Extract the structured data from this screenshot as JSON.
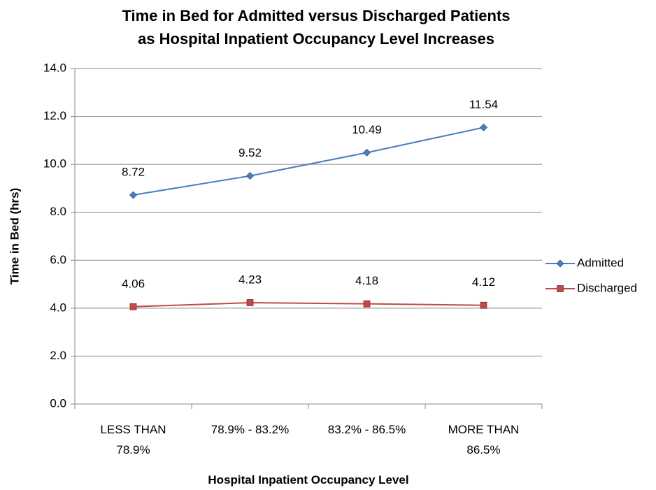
{
  "chart_data": {
    "type": "line",
    "title": "Time in Bed for Admitted versus Discharged Patients\nas Hospital Inpatient Occupancy Level Increases",
    "x_label": "Hospital Inpatient Occupancy Level",
    "y_label": "Time in Bed (hrs)",
    "categories": [
      "LESS THAN\n78.9%",
      "78.9% - 83.2%",
      "83.2% - 86.5%",
      "MORE THAN\n86.5%"
    ],
    "series": [
      {
        "name": "Admitted",
        "color": "#4a7ebb",
        "marker": "diamond",
        "values": [
          8.72,
          9.52,
          10.49,
          11.54
        ]
      },
      {
        "name": "Discharged",
        "color": "#be4b48",
        "marker": "square",
        "values": [
          4.06,
          4.23,
          4.18,
          4.12
        ]
      }
    ],
    "ylim": [
      0,
      14
    ],
    "yticks": [
      {
        "value": 0,
        "label": "0.0"
      },
      {
        "value": 2,
        "label": "2.0"
      },
      {
        "value": 4,
        "label": "4.0"
      },
      {
        "value": 6,
        "label": "6.0"
      },
      {
        "value": 8,
        "label": "8.0"
      },
      {
        "value": 10,
        "label": "10.0"
      },
      {
        "value": 12,
        "label": "12.0"
      },
      {
        "value": 14,
        "label": "14.0"
      }
    ],
    "grid": true,
    "legend": "right"
  }
}
